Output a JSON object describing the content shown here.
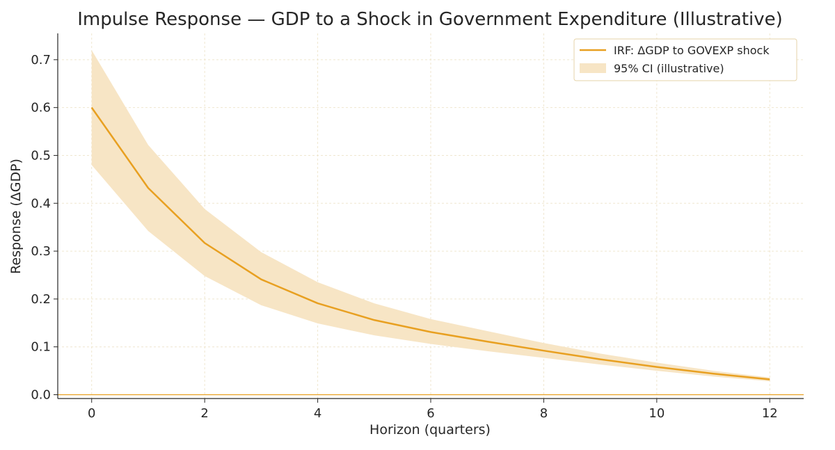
{
  "chart_data": {
    "type": "line",
    "title": "Impulse Response — GDP to a Shock in Government Expenditure (Illustrative)",
    "xlabel": "Horizon (quarters)",
    "ylabel": "Response (ΔGDP)",
    "x": [
      0,
      1,
      2,
      3,
      4,
      5,
      6,
      7,
      8,
      9,
      10,
      11,
      12
    ],
    "series": [
      {
        "name": "IRF: ΔGDP to GOVEXP shock",
        "values": [
          0.6,
          0.432,
          0.317,
          0.241,
          0.191,
          0.156,
          0.131,
          0.111,
          0.092,
          0.074,
          0.058,
          0.044,
          0.032
        ],
        "color": "#e8a021"
      }
    ],
    "ci_band": {
      "name": "95% CI (illustrative)",
      "lower": [
        0.48,
        0.342,
        0.248,
        0.187,
        0.149,
        0.124,
        0.106,
        0.091,
        0.077,
        0.063,
        0.05,
        0.038,
        0.028
      ],
      "upper": [
        0.72,
        0.522,
        0.388,
        0.298,
        0.235,
        0.191,
        0.158,
        0.133,
        0.108,
        0.086,
        0.067,
        0.05,
        0.036
      ],
      "color": "#f7e5c5"
    },
    "x_ticks": [
      "0",
      "2",
      "4",
      "6",
      "8",
      "10",
      "12"
    ],
    "y_ticks": [
      "0.0",
      "0.1",
      "0.2",
      "0.3",
      "0.4",
      "0.5",
      "0.6",
      "0.7"
    ],
    "xlim": [
      -0.6,
      12.6
    ],
    "ylim": [
      -0.008,
      0.755
    ],
    "zero_line": 0,
    "grid": true,
    "legend": "top-right"
  }
}
